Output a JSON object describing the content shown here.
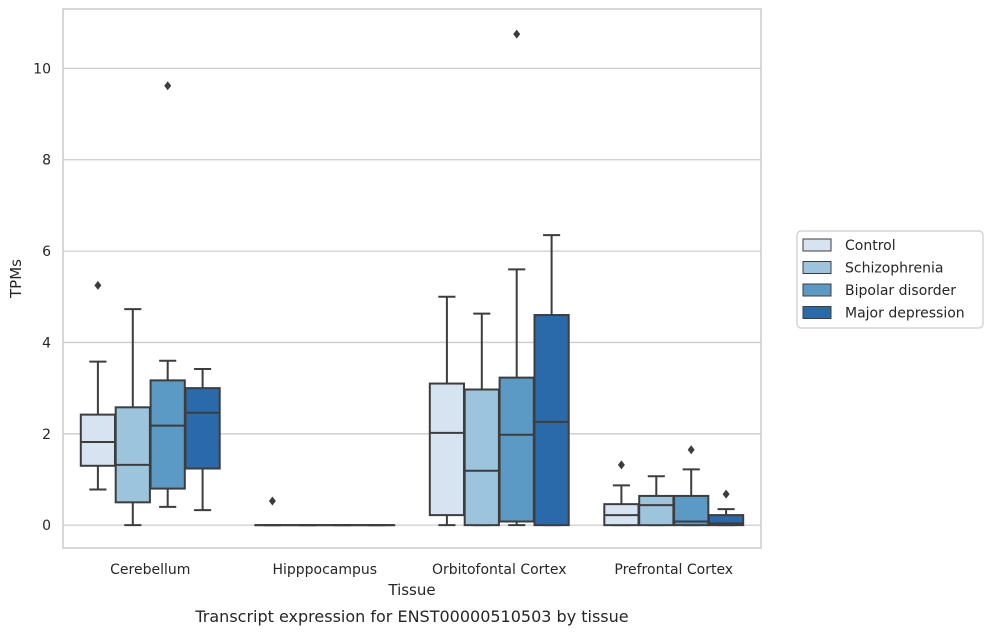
{
  "chart_data": {
    "type": "box",
    "caption": "Transcript expression for ENST00000510503 by tissue",
    "xlabel": "Tissue",
    "ylabel": "TPMs",
    "ylim": [
      -0.5,
      11.3
    ],
    "yticks": [
      0,
      2,
      4,
      6,
      8,
      10
    ],
    "grid": "horizontal",
    "legend_position": "right",
    "categories": [
      "Cerebellum",
      "Hipppocampus",
      "Orbitofontal Cortex",
      "Prefrontal Cortex"
    ],
    "series": [
      {
        "name": "Control",
        "color": "#d6e4f2",
        "boxes": [
          {
            "whisker_low": 0.78,
            "q1": 1.3,
            "median": 1.82,
            "q3": 2.42,
            "whisker_high": 3.58,
            "outliers": [
              5.25
            ]
          },
          {
            "whisker_low": 0.0,
            "q1": 0.0,
            "median": 0.0,
            "q3": 0.0,
            "whisker_high": 0.0,
            "outliers": [
              0.53
            ]
          },
          {
            "whisker_low": 0.0,
            "q1": 0.22,
            "median": 2.02,
            "q3": 3.1,
            "whisker_high": 5.0,
            "outliers": []
          },
          {
            "whisker_low": 0.0,
            "q1": 0.0,
            "median": 0.22,
            "q3": 0.46,
            "whisker_high": 0.87,
            "outliers": [
              1.32
            ]
          }
        ]
      },
      {
        "name": "Schizophrenia",
        "color": "#9cc4dd",
        "boxes": [
          {
            "whisker_low": 0.0,
            "q1": 0.5,
            "median": 1.32,
            "q3": 2.58,
            "whisker_high": 4.73,
            "outliers": []
          },
          {
            "whisker_low": 0.0,
            "q1": 0.0,
            "median": 0.0,
            "q3": 0.0,
            "whisker_high": 0.0,
            "outliers": []
          },
          {
            "whisker_low": 0.0,
            "q1": 0.0,
            "median": 1.19,
            "q3": 2.97,
            "whisker_high": 4.63,
            "outliers": []
          },
          {
            "whisker_low": 0.0,
            "q1": 0.0,
            "median": 0.44,
            "q3": 0.64,
            "whisker_high": 1.07,
            "outliers": []
          }
        ]
      },
      {
        "name": "Bipolar disorder",
        "color": "#5b9ac5",
        "boxes": [
          {
            "whisker_low": 0.4,
            "q1": 0.8,
            "median": 2.18,
            "q3": 3.17,
            "whisker_high": 3.6,
            "outliers": [
              9.62
            ]
          },
          {
            "whisker_low": 0.0,
            "q1": 0.0,
            "median": 0.0,
            "q3": 0.0,
            "whisker_high": 0.0,
            "outliers": []
          },
          {
            "whisker_low": 0.0,
            "q1": 0.08,
            "median": 1.98,
            "q3": 3.23,
            "whisker_high": 5.6,
            "outliers": [
              10.75
            ]
          },
          {
            "whisker_low": 0.0,
            "q1": 0.0,
            "median": 0.08,
            "q3": 0.64,
            "whisker_high": 1.22,
            "outliers": [
              1.65
            ]
          }
        ]
      },
      {
        "name": "Major depression",
        "color": "#2a6aaa",
        "boxes": [
          {
            "whisker_low": 0.33,
            "q1": 1.24,
            "median": 2.46,
            "q3": 3.0,
            "whisker_high": 3.42,
            "outliers": []
          },
          {
            "whisker_low": 0.0,
            "q1": 0.0,
            "median": 0.0,
            "q3": 0.0,
            "whisker_high": 0.0,
            "outliers": []
          },
          {
            "whisker_low": 0.0,
            "q1": 0.0,
            "median": 2.26,
            "q3": 4.6,
            "whisker_high": 6.35,
            "outliers": []
          },
          {
            "whisker_low": 0.0,
            "q1": 0.0,
            "median": 0.04,
            "q3": 0.22,
            "whisker_high": 0.35,
            "outliers": [
              0.68
            ]
          }
        ]
      }
    ]
  }
}
